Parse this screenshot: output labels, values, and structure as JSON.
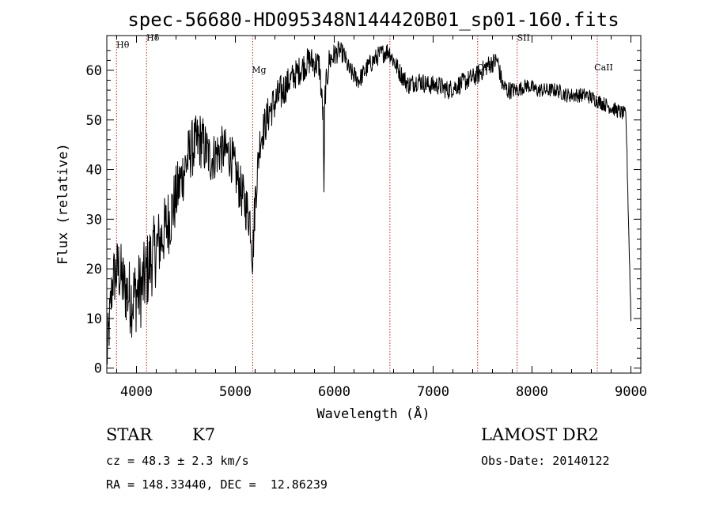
{
  "chart_data": {
    "type": "line",
    "title": "spec-56680-HD095348N144420B01_sp01-160.fits",
    "xlabel": "Wavelength (Å)",
    "ylabel": "Flux (relative)",
    "xlim": [
      3700,
      9100
    ],
    "ylim": [
      -1,
      67
    ],
    "xticks": [
      4000,
      5000,
      6000,
      7000,
      8000,
      9000
    ],
    "yticks": [
      0,
      10,
      20,
      30,
      40,
      50,
      60
    ],
    "grid": false,
    "line_color": "#000000",
    "marker_color": "#b22222",
    "spectral_lines": [
      {
        "name": "Hθ",
        "x": 3798,
        "label_y": 64.5
      },
      {
        "name": "Hδ",
        "x": 4102,
        "label_y": 66
      },
      {
        "name": "Mg",
        "x": 5175,
        "label_y": 59.5
      },
      {
        "name": "",
        "x": 6563,
        "label_y": 66
      },
      {
        "name": "OII",
        "x": 7450,
        "label_y": 60
      },
      {
        "name": "SII",
        "x": 7850,
        "label_y": 66
      },
      {
        "name": "CaII",
        "x": 8660,
        "label_y": 60
      }
    ],
    "series": [
      {
        "anchors_x": [
          3700,
          3760,
          3820,
          3880,
          3950,
          4050,
          4150,
          4250,
          4350,
          4450,
          4550,
          4650,
          4750,
          4850,
          4950,
          5050,
          5150,
          5175,
          5200,
          5250,
          5350,
          5450,
          5550,
          5650,
          5750,
          5850,
          5890,
          5896,
          5905,
          5950,
          6050,
          6100,
          6150,
          6250,
          6350,
          6450,
          6550,
          6650,
          6750,
          6850,
          6950,
          7050,
          7150,
          7250,
          7350,
          7450,
          7550,
          7650,
          7700,
          7750,
          7850,
          7950,
          8050,
          8150,
          8250,
          8350,
          8450,
          8550,
          8650,
          8750,
          8850,
          8950,
          9000
        ],
        "anchors_y": [
          2,
          18,
          20,
          16,
          14,
          16,
          22,
          26,
          31,
          38,
          44,
          46,
          42,
          44,
          43,
          36,
          30,
          22,
          34,
          46,
          52,
          55,
          58,
          60,
          62,
          61,
          50,
          33,
          55,
          62,
          64,
          63,
          60,
          58,
          61,
          63,
          64,
          60,
          57,
          58,
          57,
          57,
          56,
          57,
          58,
          59,
          61,
          62,
          57,
          56,
          56,
          57,
          56,
          56,
          56,
          55,
          55,
          55,
          54,
          53,
          52,
          51,
          10
        ],
        "noise_amplitude": [
          6,
          6,
          7,
          7,
          8,
          8,
          8,
          7,
          7,
          6,
          6,
          6,
          5,
          5,
          5,
          5,
          5,
          5,
          5,
          4,
          4,
          4,
          3,
          3,
          3,
          3,
          3,
          3,
          3,
          3,
          2,
          2,
          2,
          2,
          2,
          2,
          2,
          2,
          2,
          2,
          2,
          2,
          2,
          2,
          2,
          2,
          2,
          2,
          2,
          2,
          1.5,
          1.5,
          1.5,
          1.5,
          1.5,
          1.5,
          1.5,
          1.5,
          1.5,
          1.5,
          1.5,
          1.5,
          1.5
        ],
        "step_angstrom": 4
      }
    ]
  },
  "info": {
    "object_type": "STAR",
    "spectral_class": "K7",
    "survey": "LAMOST DR2",
    "redshift": "cz = 48.3 ± 2.3 km/s",
    "obs_date": "Obs-Date: 20140122",
    "coords": "RA = 148.33440, DEC =  12.86239"
  }
}
